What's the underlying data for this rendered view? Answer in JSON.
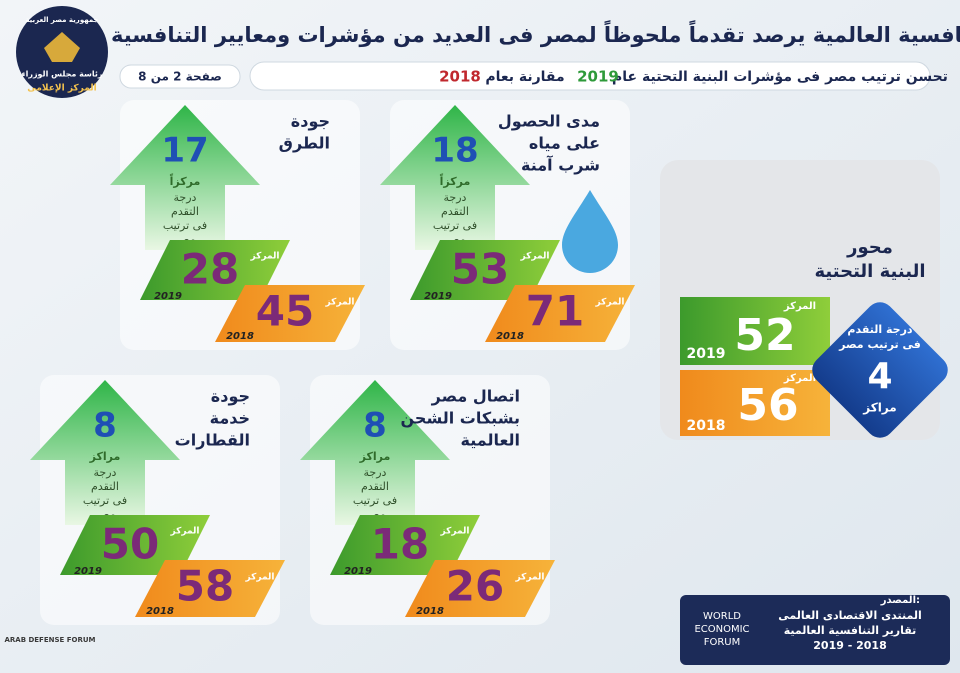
{
  "header": {
    "title": "تقرير التنافسية العالمية يرصد تقدماً ملحوظاً لمصر فى العديد من مؤشرات ومعايير التنافسية",
    "subtitle": {
      "before": "تحسن ترتيب مصر فى مؤشرات البنية التحتية عام",
      "year_new": "2019",
      "middle": "مقارنة بعام",
      "year_old": "2018"
    },
    "page": "صفحة 2 من 8"
  },
  "logo": {
    "top": "جمهورية مصر العربية",
    "middle": "رئاسة مجلس الوزراء",
    "bottom": "المركز الإعلامى"
  },
  "labels": {
    "rank": "المركز",
    "year_2019": "2019",
    "year_2018": "2018"
  },
  "main": {
    "title": [
      "محور",
      "البنية التحتية"
    ],
    "rank_2019": 52,
    "rank_2018": 56,
    "improvement": 4,
    "improvement_unit": "مراكز",
    "improvement_label": [
      "درجة التقدم",
      "فى ترتيب مصر"
    ]
  },
  "indicators": [
    {
      "name": [
        "مدى الحصول",
        "على مياه",
        "شرب آمنة"
      ],
      "improvement": 18,
      "improvement_unit": "مركزاً",
      "improvement_label": [
        "درجة",
        "التقدم",
        "فى ترتيب",
        "مصر"
      ],
      "rank_2019": 53,
      "rank_2018": 71
    },
    {
      "name": [
        "جودة",
        "الطرق"
      ],
      "improvement": 17,
      "improvement_unit": "مركزاً",
      "improvement_label": [
        "درجة",
        "التقدم",
        "فى ترتيب",
        "مصر"
      ],
      "rank_2019": 28,
      "rank_2018": 45
    },
    {
      "name": [
        "جودة",
        "خدمة",
        "القطارات"
      ],
      "improvement": 8,
      "improvement_unit": "مراكز",
      "improvement_label": [
        "درجة",
        "التقدم",
        "فى ترتيب",
        "مصر"
      ],
      "rank_2019": 50,
      "rank_2018": 58
    },
    {
      "name": [
        "اتصال مصر",
        "بشبكات الشحن",
        "العالمية"
      ],
      "improvement": 8,
      "improvement_unit": "مراكز",
      "improvement_label": [
        "درجة",
        "التقدم",
        "فى ترتيب",
        "مصر"
      ],
      "rank_2019": 18,
      "rank_2018": 26
    }
  ],
  "source": {
    "label": "المصدر:",
    "logo": [
      "WORLD",
      "ECONOMIC",
      "FORUM"
    ],
    "lines": [
      "المنتدى الاقتصادى العالمى",
      "تقارير التنافسية العالمية",
      "2019 - 2018"
    ]
  },
  "watermark": "ARAB DEFENSE FORUM"
}
